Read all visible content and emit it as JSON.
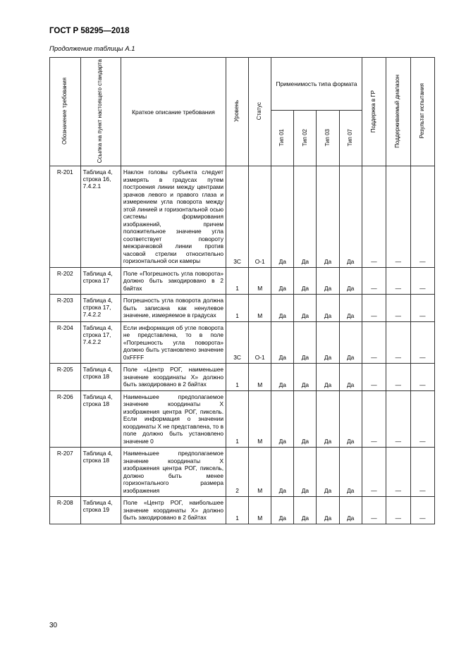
{
  "doc_title": "ГОСТ Р 58295—2018",
  "continuation": "Продолжение таблицы А.1",
  "page_number": "30",
  "headers": {
    "col1": "Обозначение требования",
    "col2": "Ссылка на пункт настоящего стандарта",
    "col3": "Краткое описание требования",
    "col4": "Уровень",
    "col5": "Статус",
    "grp": "Применимость типа формата",
    "g1": "Тип 01",
    "g2": "Тип 02",
    "g3": "Тип 03",
    "g4": "Тип 07",
    "col10": "Поддержка в ГР",
    "col11": "Поддерживаемый диапазон",
    "col12": "Результат испытания"
  },
  "rows": [
    {
      "id": "R-201",
      "ref": "Таблица 4, строка 16, 7.4.2.1",
      "desc": "Наклон головы субъекта следует измерять в градусах путем построения линии между центрами зрачков левого и правого глаза и измерением угла поворота между этой линией и горизонтальной осью системы формирования изображений, причем положительное значение угла соответствует повороту межзрачковой линии против часовой стрелки относительно горизонтальной оси камеры",
      "level": "3С",
      "status": "O-1",
      "t1": "Да",
      "t2": "Да",
      "t3": "Да",
      "t4": "Да",
      "c10": "—",
      "c11": "—",
      "c12": "—"
    },
    {
      "id": "R-202",
      "ref": "Таблица 4, строка 17",
      "desc": "Поле «Погрешность угла поворота» должно быть закодировано в 2 байтах",
      "level": "1",
      "status": "М",
      "t1": "Да",
      "t2": "Да",
      "t3": "Да",
      "t4": "Да",
      "c10": "—",
      "c11": "—",
      "c12": "—"
    },
    {
      "id": "R-203",
      "ref": "Таблица 4, строка 17, 7.4.2.2",
      "desc": "Погрешность угла поворота должна быть записана как ненулевое значение, измеряемое в градусах",
      "level": "1",
      "status": "М",
      "t1": "Да",
      "t2": "Да",
      "t3": "Да",
      "t4": "Да",
      "c10": "—",
      "c11": "—",
      "c12": "—"
    },
    {
      "id": "R-204",
      "ref": "Таблица 4, строка 17, 7.4.2.2",
      "desc": "Если информация об угле поворота не представлена, то в поле «Погрешность угла поворота» должно быть установлено значение 0xFFFF",
      "level": "3С",
      "status": "O-1",
      "t1": "Да",
      "t2": "Да",
      "t3": "Да",
      "t4": "Да",
      "c10": "—",
      "c11": "—",
      "c12": "—"
    },
    {
      "id": "R-205",
      "ref": "Таблица 4, строка 18",
      "desc": "Поле «Центр РОГ, наименьшее значение координаты X» должно быть закодировано в 2 байтах",
      "level": "1",
      "status": "М",
      "t1": "Да",
      "t2": "Да",
      "t3": "Да",
      "t4": "Да",
      "c10": "—",
      "c11": "—",
      "c12": "—"
    },
    {
      "id": "R-206",
      "ref": "Таблица 4, строка 18",
      "desc": "Наименьшее предполагаемое значение координаты X изображения центра РОГ, пиксель. Если информация о значении координаты X не представлена, то в поле должно быть установлено значение 0",
      "level": "1",
      "status": "М",
      "t1": "Да",
      "t2": "Да",
      "t3": "Да",
      "t4": "Да",
      "c10": "—",
      "c11": "—",
      "c12": "—"
    },
    {
      "id": "R-207",
      "ref": "Таблица 4, строка 18",
      "desc": "Наименьшее предполагаемое значение координаты X изображения центра РОГ, пиксель, должно быть менее горизонтального размера изображения",
      "level": "2",
      "status": "М",
      "t1": "Да",
      "t2": "Да",
      "t3": "Да",
      "t4": "Да",
      "c10": "—",
      "c11": "—",
      "c12": "—"
    },
    {
      "id": "R-208",
      "ref": "Таблица 4, строка 19",
      "desc": "Поле «Центр РОГ, наибольшее значение координаты X» должно быть закодировано в 2 байтах",
      "level": "1",
      "status": "М",
      "t1": "Да",
      "t2": "Да",
      "t3": "Да",
      "t4": "Да",
      "c10": "—",
      "c11": "—",
      "c12": "—"
    }
  ]
}
